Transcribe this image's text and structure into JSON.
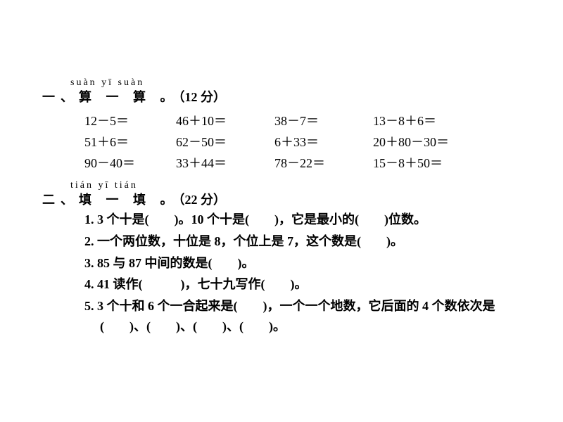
{
  "section1": {
    "pinyin": "suàn yī suàn",
    "title": "一、算 一 算 。",
    "points": "（12 分）",
    "rows": [
      [
        "12－5＝",
        "46＋10＝",
        "38－7＝",
        "13－8＋6＝"
      ],
      [
        "51＋6＝",
        "62－50＝",
        "6＋33＝",
        "20＋80－30＝"
      ],
      [
        "90－40＝",
        "33＋44＝",
        "78－22＝",
        "15－8＋50＝"
      ]
    ]
  },
  "section2": {
    "pinyin": "tián yī tián",
    "title": "二、填 一 填 。",
    "points": "（22 分）",
    "items": [
      "1. 3 个十是(　　)。10 个十是(　　)，它是最小的(　　)位数。",
      "2. 一个两位数，十位是 8，个位上是 7，这个数是(　　)。",
      "3. 85 与 87 中间的数是(　　)。",
      "4. 41 读作(　　　)，七十九写作(　　)。",
      "5. 3 个十和 6 个一合起来是(　　)，一个一个地数，它后面的 4 个数依次是(　　)、(　　)、(　　)、(　　)。"
    ]
  },
  "style": {
    "background": "#ffffff",
    "text_color": "#000000",
    "font_size_body": 18,
    "font_size_pinyin": 14
  }
}
